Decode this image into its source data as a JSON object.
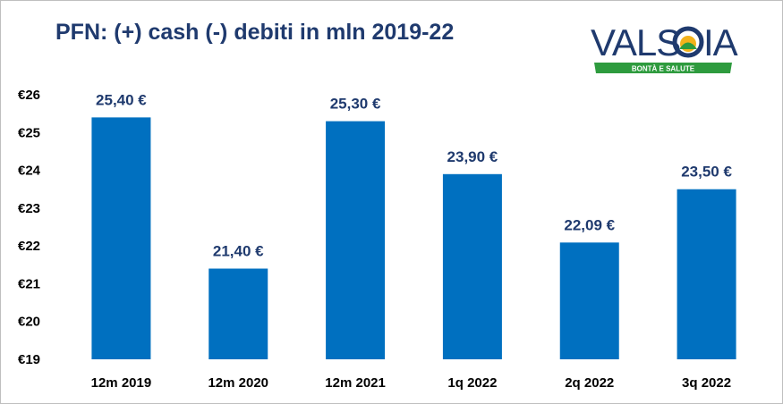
{
  "logo": {
    "text": "VALSOIA",
    "tagline": "BONTÀ E SALUTE",
    "colors": {
      "letters": "#1f3a6e",
      "leaf": "#2e9b3e",
      "sun": "#f3b21b",
      "band": "#2e9b3e"
    }
  },
  "chart_data": {
    "type": "bar",
    "title": "PFN: (+) cash (-) debiti in mln 2019-22",
    "categories": [
      "12m 2019",
      "12m 2020",
      "12m 2021",
      "1q 2022",
      "2q 2022",
      "3q 2022"
    ],
    "values": [
      25.4,
      21.4,
      25.3,
      23.9,
      22.09,
      23.5
    ],
    "data_labels": [
      "25,40 €",
      "21,40 €",
      "25,30 €",
      "23,90 €",
      "22,09 €",
      "23,50 €"
    ],
    "yticks": [
      "€19",
      "€20",
      "€21",
      "€22",
      "€23",
      "€24",
      "€25",
      "€26"
    ],
    "ylim": [
      19,
      26
    ],
    "xlabel": "",
    "ylabel": "",
    "grid": false,
    "bar_color": "#0070c0",
    "label_color": "#1f3a6e"
  }
}
